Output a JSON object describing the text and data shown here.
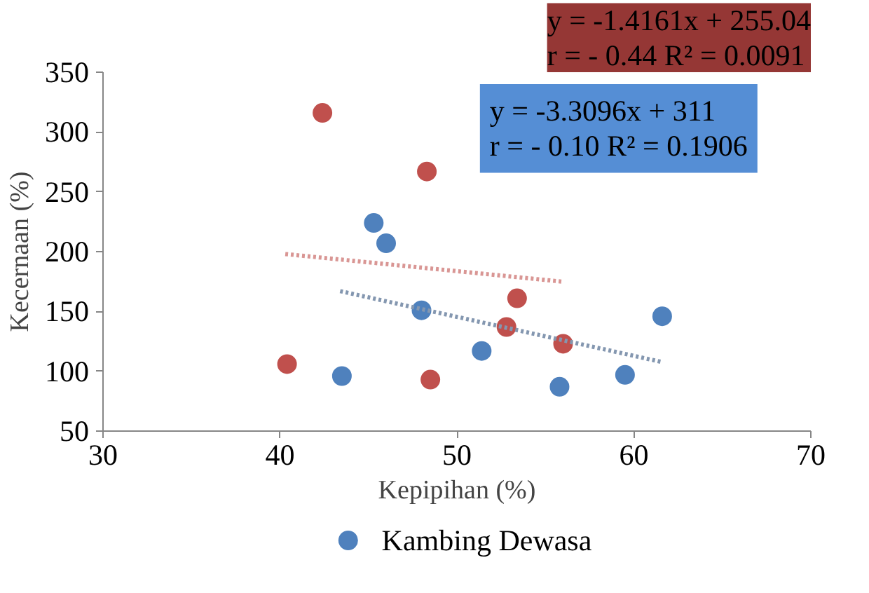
{
  "chart_data": {
    "type": "scatter",
    "xlabel": "Kepipihan (%)",
    "ylabel": "Kecernaan (%)",
    "xlim": [
      30,
      70
    ],
    "xticks": [
      30,
      40,
      50,
      60,
      70
    ],
    "ylim": [
      50,
      350
    ],
    "yticks": [
      50,
      100,
      150,
      200,
      250,
      300,
      350
    ],
    "grid": false,
    "legend": "bottom",
    "marker": "circle",
    "series": [
      {
        "name": "Kambing Dewasa",
        "color": "#4f81bd",
        "x": [
          45.3,
          46.0,
          48.0,
          43.5,
          51.4,
          55.8,
          59.5,
          61.6
        ],
        "values": [
          224,
          207,
          151,
          96,
          117,
          87,
          97,
          146
        ]
      },
      {
        "color": "#c0504d",
        "x": [
          42.4,
          48.3,
          40.4,
          48.5,
          52.8,
          53.4,
          56.0
        ],
        "values": [
          316,
          267,
          106,
          93,
          137,
          161,
          123
        ]
      },
      {
        "type": "line",
        "line_style": "dotted",
        "marker": "none",
        "color": "#d99694",
        "x": [
          40.3,
          55.9
        ],
        "values": [
          198,
          175
        ]
      },
      {
        "type": "line",
        "line_style": "dotted",
        "marker": "none",
        "color": "#8497b0",
        "x": [
          43.4,
          61.5
        ],
        "values": [
          167,
          108
        ]
      }
    ],
    "annotations": [
      "y = -1.4161x + 255.04\nr = - 0.44 R² = 0.0091",
      "y = -3.3096x + 311\nr = - 0.10 R² = 0.1906"
    ]
  }
}
